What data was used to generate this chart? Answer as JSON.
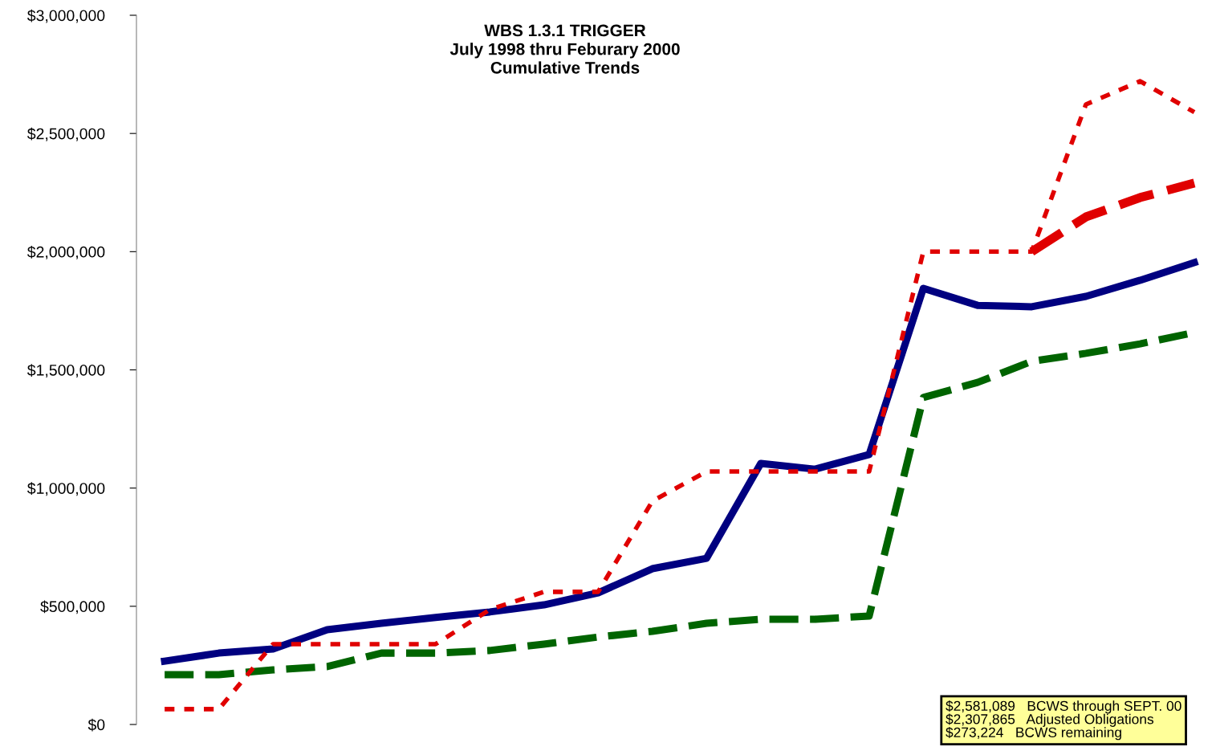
{
  "chart_data": {
    "type": "line",
    "title": "WBS 1.3.1 TRIGGER\nJuly 1998 thru Feburary 2000\nCumulative Trends",
    "categories": [
      null,
      null,
      null,
      null,
      null,
      null,
      null,
      null,
      null,
      null,
      null,
      null,
      null,
      null,
      null,
      null,
      null,
      null,
      null,
      null
    ],
    "series": [
      {
        "color": "#000080",
        "line_style": "solid",
        "values": [
          268000,
          302000,
          319000,
          401000,
          428000,
          453000,
          476000,
          506000,
          557000,
          659000,
          703000,
          1104000,
          1080000,
          1142000,
          1845000,
          1773000,
          1767000,
          1811000,
          1879000,
          1954000
        ]
      },
      {
        "color": "#006400",
        "line_style": "dashed",
        "values": [
          211000,
          211000,
          231000,
          245000,
          302000,
          302000,
          313000,
          340000,
          370000,
          394000,
          428000,
          445000,
          445000,
          459000,
          1383000,
          1447000,
          1536000,
          1570000,
          1610000,
          1658000
        ]
      },
      {
        "color": "#e00000",
        "line_style": "dotted",
        "values": [
          65000,
          65000,
          340000,
          340000,
          340000,
          340000,
          486000,
          561000,
          561000,
          945000,
          1070000,
          1070000,
          1070000,
          1070000,
          2000000,
          2000000,
          2000000,
          2623000,
          2721000,
          2590000
        ]
      },
      {
        "color": "#e00000",
        "line_style": "dashed",
        "values": [
          null,
          null,
          null,
          null,
          null,
          null,
          null,
          null,
          null,
          null,
          null,
          null,
          null,
          null,
          null,
          null,
          2000000,
          2147000,
          2229000,
          2290000
        ]
      }
    ],
    "ylim": [
      0,
      3000000
    ],
    "yticks": [
      {
        "value": 0,
        "label": "$0"
      },
      {
        "value": 500000,
        "label": "$500,000"
      },
      {
        "value": 1000000,
        "label": "$1,000,000"
      },
      {
        "value": 1500000,
        "label": "$1,500,000"
      },
      {
        "value": 2000000,
        "label": "$2,000,000"
      },
      {
        "value": 2500000,
        "label": "$2,500,000"
      },
      {
        "value": 3000000,
        "label": "$3,000,000"
      }
    ],
    "tick_labels": "y",
    "grid": false,
    "legend": false,
    "annotations": [
      "$2,581,089   BCWS through SEPT. 00",
      "$2,307,865   Adjusted Obligations",
      "$273,224   BCWS remaining"
    ]
  }
}
